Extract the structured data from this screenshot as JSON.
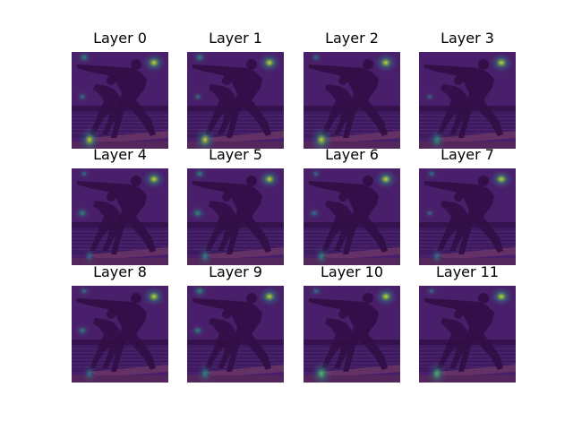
{
  "figure": {
    "background": "#ffffff",
    "colormap": "viridis",
    "overlay_alpha": "semi-transparent"
  },
  "chart_data": {
    "type": "heatmap",
    "layout": {
      "rows": 3,
      "cols": 4
    },
    "subplot_titles": [
      "Layer 0",
      "Layer 1",
      "Layer 2",
      "Layer 3",
      "Layer 4",
      "Layer 5",
      "Layer 6",
      "Layer 7",
      "Layer 8",
      "Layer 9",
      "Layer 10",
      "Layer 11"
    ],
    "image_description": "attention heatmaps overlaid on a photo of two silhouetted people crouching on paddleboards over water at dusk",
    "hotspots": [
      [
        {
          "pos": "top-right",
          "intensity": 0.95
        },
        {
          "pos": "bottom-left",
          "intensity": 0.85
        },
        {
          "pos": "top-left",
          "intensity": 0.5
        },
        {
          "pos": "mid-left",
          "intensity": 0.35
        }
      ],
      [
        {
          "pos": "top-right",
          "intensity": 0.95
        },
        {
          "pos": "bottom-left",
          "intensity": 0.85
        },
        {
          "pos": "top-left",
          "intensity": 0.5
        },
        {
          "pos": "mid-left",
          "intensity": 0.3
        }
      ],
      [
        {
          "pos": "top-right",
          "intensity": 0.95
        },
        {
          "pos": "bottom-left",
          "intensity": 0.9
        },
        {
          "pos": "top-left",
          "intensity": 0.35
        }
      ],
      [
        {
          "pos": "top-right",
          "intensity": 0.95
        },
        {
          "pos": "bottom-left",
          "intensity": 0.6
        },
        {
          "pos": "mid-left",
          "intensity": 0.25
        }
      ],
      [
        {
          "pos": "top-right",
          "intensity": 0.95
        },
        {
          "pos": "mid-left",
          "intensity": 0.5
        },
        {
          "pos": "top-left",
          "intensity": 0.3
        },
        {
          "pos": "bottom-left",
          "intensity": 0.3
        }
      ],
      [
        {
          "pos": "top-right",
          "intensity": 0.95
        },
        {
          "pos": "mid-left",
          "intensity": 0.55
        },
        {
          "pos": "top-left",
          "intensity": 0.45
        },
        {
          "pos": "bottom-left",
          "intensity": 0.45
        }
      ],
      [
        {
          "pos": "top-right",
          "intensity": 0.95
        },
        {
          "pos": "mid-left",
          "intensity": 0.4
        },
        {
          "pos": "bottom-left",
          "intensity": 0.45
        },
        {
          "pos": "top-left",
          "intensity": 0.3
        }
      ],
      [
        {
          "pos": "top-right",
          "intensity": 0.95
        },
        {
          "pos": "top-left",
          "intensity": 0.35
        },
        {
          "pos": "mid-left",
          "intensity": 0.3
        },
        {
          "pos": "bottom-left",
          "intensity": 0.35
        }
      ],
      [
        {
          "pos": "top-right",
          "intensity": 0.95
        },
        {
          "pos": "mid-left",
          "intensity": 0.45
        },
        {
          "pos": "top-left",
          "intensity": 0.35
        },
        {
          "pos": "bottom-left",
          "intensity": 0.4
        }
      ],
      [
        {
          "pos": "top-right",
          "intensity": 0.95
        },
        {
          "pos": "top-left",
          "intensity": 0.55
        },
        {
          "pos": "mid-left",
          "intensity": 0.45
        },
        {
          "pos": "bottom-left",
          "intensity": 0.5
        }
      ],
      [
        {
          "pos": "top-right",
          "intensity": 0.95
        },
        {
          "pos": "bottom-left",
          "intensity": 0.8
        },
        {
          "pos": "top-left",
          "intensity": 0.35
        }
      ],
      [
        {
          "pos": "top-right",
          "intensity": 0.95
        },
        {
          "pos": "bottom-left",
          "intensity": 0.7
        },
        {
          "pos": "top-left",
          "intensity": 0.3
        }
      ]
    ]
  }
}
